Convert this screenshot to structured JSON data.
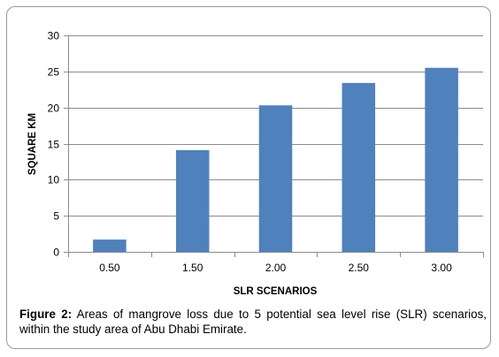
{
  "chart_data": {
    "type": "bar",
    "categories": [
      "0.50",
      "1.50",
      "2.00",
      "2.50",
      "3.00"
    ],
    "values": [
      1.7,
      14.1,
      20.3,
      23.4,
      25.5
    ],
    "title": "",
    "xlabel": "SLR SCENARIOS",
    "ylabel": "SQUARE KM",
    "ylim": [
      0,
      30
    ],
    "yticks": [
      "0",
      "5",
      "10",
      "15",
      "20",
      "25",
      "30"
    ],
    "grid": true,
    "legend": "none",
    "bar_color": "#4f81bd"
  },
  "caption": {
    "label": "Figure 2:",
    "text": " Areas of mangrove loss due to 5 potential sea level rise (SLR) scenarios, within the study area of Abu Dhabi Emirate."
  }
}
